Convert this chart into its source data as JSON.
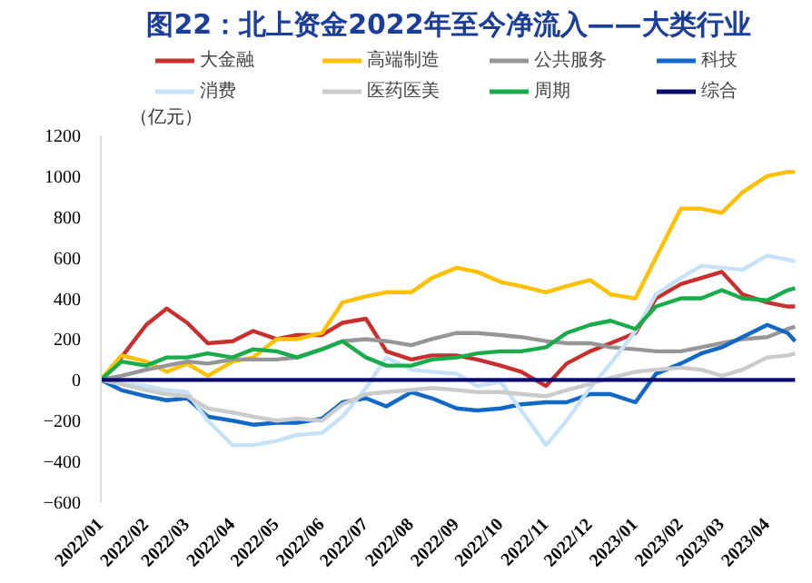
{
  "chart_data": {
    "type": "line",
    "title": "图22：北上资金2022年至今净流入——大类行业",
    "annotations": [
      "（亿元）"
    ],
    "x": [
      "2022-01-01",
      "2022-01-15",
      "2022-02-01",
      "2022-02-15",
      "2022-03-01",
      "2022-03-15",
      "2022-04-01",
      "2022-04-15",
      "2022-05-01",
      "2022-05-15",
      "2022-06-01",
      "2022-06-15",
      "2022-07-01",
      "2022-07-15",
      "2022-08-01",
      "2022-08-15",
      "2022-09-01",
      "2022-09-15",
      "2022-10-01",
      "2022-10-15",
      "2022-11-01",
      "2022-11-15",
      "2022-12-01",
      "2022-12-15",
      "2023-01-01",
      "2023-01-15",
      "2023-02-01",
      "2023-02-15",
      "2023-03-01",
      "2023-03-15",
      "2023-04-01",
      "2023-04-15",
      "2023-04-20"
    ],
    "series": [
      {
        "name": "大金融",
        "color": "#c8302f",
        "values": [
          0,
          110,
          270,
          350,
          280,
          180,
          190,
          240,
          200,
          220,
          220,
          280,
          300,
          140,
          100,
          120,
          120,
          100,
          70,
          40,
          -30,
          80,
          140,
          180,
          230,
          400,
          470,
          500,
          530,
          420,
          380,
          360,
          360
        ]
      },
      {
        "name": "高端制造",
        "color": "#ffc000",
        "values": [
          0,
          120,
          90,
          40,
          80,
          20,
          90,
          110,
          200,
          200,
          230,
          380,
          410,
          430,
          430,
          500,
          550,
          530,
          480,
          460,
          430,
          460,
          490,
          420,
          400,
          600,
          840,
          840,
          820,
          920,
          1000,
          1020,
          1020
        ]
      },
      {
        "name": "公共服务",
        "color": "#969696",
        "values": [
          0,
          20,
          50,
          70,
          90,
          80,
          100,
          100,
          100,
          110,
          150,
          190,
          200,
          190,
          170,
          200,
          230,
          230,
          220,
          210,
          190,
          180,
          180,
          160,
          150,
          140,
          140,
          160,
          180,
          200,
          210,
          250,
          260
        ]
      },
      {
        "name": "科技",
        "color": "#1268c4",
        "values": [
          0,
          -50,
          -80,
          -100,
          -90,
          -180,
          -200,
          -220,
          -210,
          -210,
          -190,
          -110,
          -90,
          -130,
          -60,
          -90,
          -140,
          -150,
          -140,
          -120,
          -110,
          -110,
          -70,
          -70,
          -110,
          30,
          80,
          130,
          160,
          210,
          270,
          230,
          190
        ]
      },
      {
        "name": "消费",
        "color": "#c6e2f8",
        "values": [
          0,
          -20,
          -30,
          -50,
          -60,
          -200,
          -320,
          -320,
          -300,
          -270,
          -260,
          -180,
          -40,
          110,
          50,
          40,
          30,
          -30,
          -10,
          -150,
          -320,
          -200,
          -40,
          80,
          240,
          420,
          500,
          560,
          550,
          540,
          610,
          590,
          580
        ]
      },
      {
        "name": "医药医美",
        "color": "#cbcbcb",
        "values": [
          0,
          -20,
          -50,
          -70,
          -80,
          -140,
          -160,
          -180,
          -200,
          -190,
          -200,
          -120,
          -70,
          -60,
          -50,
          -40,
          -50,
          -60,
          -60,
          -70,
          -80,
          -50,
          -20,
          10,
          40,
          50,
          60,
          50,
          20,
          50,
          110,
          120,
          130
        ]
      },
      {
        "name": "周期",
        "color": "#1aab4b",
        "values": [
          0,
          90,
          70,
          110,
          110,
          130,
          110,
          150,
          140,
          110,
          150,
          190,
          110,
          70,
          70,
          100,
          110,
          130,
          140,
          140,
          160,
          230,
          270,
          290,
          250,
          360,
          400,
          400,
          440,
          400,
          390,
          440,
          450
        ]
      },
      {
        "name": "综合",
        "color": "#0b0b6b",
        "x": [
          "2022-01-01",
          "2023-04-20"
        ],
        "values": [
          0,
          0
        ]
      }
    ],
    "xlim": [
      "2022-01-01",
      "2023-04-21"
    ],
    "xticks": [
      {
        "value": "2022-01-01",
        "label": "2022/01"
      },
      {
        "value": "2022-02-01",
        "label": "2022/02"
      },
      {
        "value": "2022-03-01",
        "label": "2022/03"
      },
      {
        "value": "2022-04-01",
        "label": "2022/04"
      },
      {
        "value": "2022-05-01",
        "label": "2022/05"
      },
      {
        "value": "2022-06-01",
        "label": "2022/06"
      },
      {
        "value": "2022-07-01",
        "label": "2022/07"
      },
      {
        "value": "2022-08-01",
        "label": "2022/08"
      },
      {
        "value": "2022-09-01",
        "label": "2022/09"
      },
      {
        "value": "2022-10-01",
        "label": "2022/10"
      },
      {
        "value": "2022-11-01",
        "label": "2022/11"
      },
      {
        "value": "2022-12-01",
        "label": "2022/12"
      },
      {
        "value": "2023-01-01",
        "label": "2023/01"
      },
      {
        "value": "2023-02-01",
        "label": "2023/02"
      },
      {
        "value": "2023-03-01",
        "label": "2023/03"
      },
      {
        "value": "2023-04-01",
        "label": "2023/04"
      }
    ],
    "ylim": [
      -600,
      1200
    ],
    "yticks": [
      -600,
      -400,
      -200,
      0,
      200,
      400,
      600,
      800,
      1000,
      1200
    ],
    "grid": false,
    "legend": "top",
    "marker": "none",
    "line_style": "solid"
  }
}
